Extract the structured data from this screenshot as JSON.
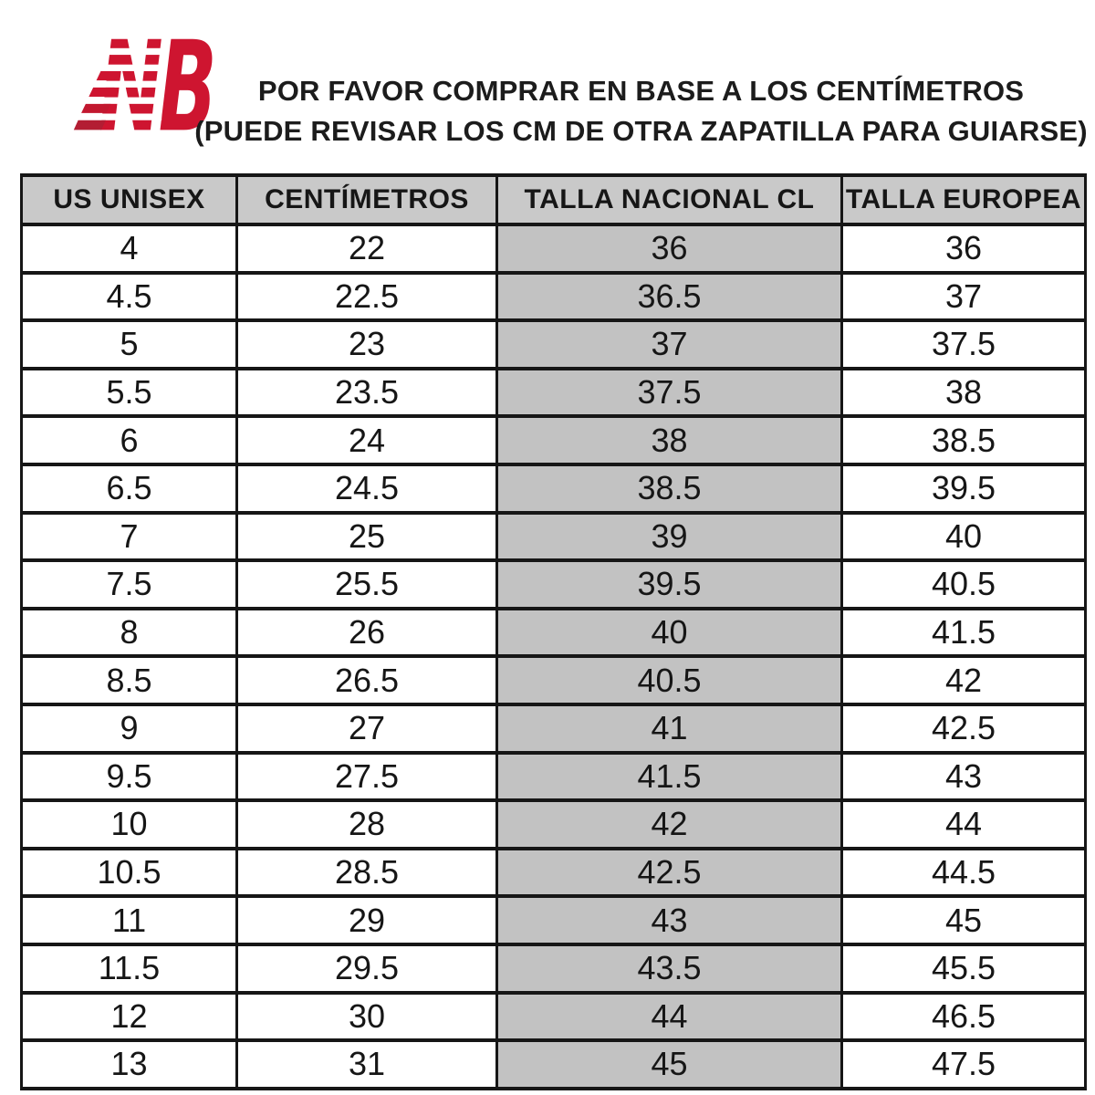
{
  "logo": {
    "name": "New Balance",
    "letters": "NB",
    "color": "#ce1530"
  },
  "title": {
    "line1": "POR FAVOR COMPRAR EN BASE A LOS CENTÍMETROS",
    "line2": "(PUEDE REVISAR LOS CM DE OTRA ZAPATILLA PARA GUIARSE)"
  },
  "table": {
    "columns": [
      "US UNISEX",
      "CENTÍMETROS",
      "TALLA NACIONAL CL",
      "TALLA EUROPEA"
    ],
    "highlighted_column": "TALLA NACIONAL CL",
    "highlighted_column_index": 2,
    "rows": [
      [
        "4",
        "22",
        "36",
        "36"
      ],
      [
        "4.5",
        "22.5",
        "36.5",
        "37"
      ],
      [
        "5",
        "23",
        "37",
        "37.5"
      ],
      [
        "5.5",
        "23.5",
        "37.5",
        "38"
      ],
      [
        "6",
        "24",
        "38",
        "38.5"
      ],
      [
        "6.5",
        "24.5",
        "38.5",
        "39.5"
      ],
      [
        "7",
        "25",
        "39",
        "40"
      ],
      [
        "7.5",
        "25.5",
        "39.5",
        "40.5"
      ],
      [
        "8",
        "26",
        "40",
        "41.5"
      ],
      [
        "8.5",
        "26.5",
        "40.5",
        "42"
      ],
      [
        "9",
        "27",
        "41",
        "42.5"
      ],
      [
        "9.5",
        "27.5",
        "41.5",
        "43"
      ],
      [
        "10",
        "28",
        "42",
        "44"
      ],
      [
        "10.5",
        "28.5",
        "42.5",
        "44.5"
      ],
      [
        "11",
        "29",
        "43",
        "45"
      ],
      [
        "11.5",
        "29.5",
        "43.5",
        "45.5"
      ],
      [
        "12",
        "30",
        "44",
        "46.5"
      ],
      [
        "13",
        "31",
        "45",
        "47.5"
      ]
    ]
  },
  "colors": {
    "logo_red": "#ce1530",
    "header_row_bg": "#c9c9c9",
    "highlight_column_bg": "#c2c2c2",
    "table_border": "#161616",
    "text": "#1c1c1c",
    "background": "#ffffff"
  }
}
